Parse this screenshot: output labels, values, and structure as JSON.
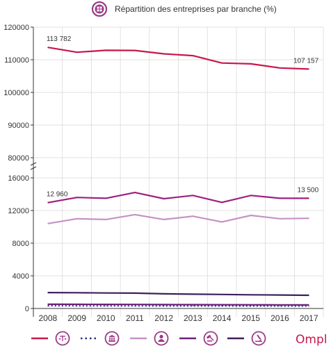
{
  "title": "Répartition des entreprises par branche (%)",
  "brand": "Ompl",
  "colors": {
    "accent": "#c8174b",
    "icon_ring": "#9b3a86",
    "grid": "#d9d9d9",
    "axis": "#333333"
  },
  "chart_data": [
    {
      "type": "line",
      "panel": "top",
      "x": [
        "2008",
        "2009",
        "2010",
        "2011",
        "2012",
        "2013",
        "2014",
        "2015",
        "2016",
        "2017"
      ],
      "ylim": [
        80000,
        120000
      ],
      "yticks": [
        "120000",
        "110000",
        "100000",
        "90000",
        "80000"
      ],
      "grid": true,
      "series": [
        {
          "color": "#c8174b",
          "values": [
            113782,
            112300,
            112900,
            112850,
            111800,
            111250,
            109000,
            108750,
            107500,
            107157
          ]
        }
      ],
      "annotations": [
        "113 782",
        "107 157"
      ]
    },
    {
      "type": "line",
      "panel": "bottom",
      "x": [
        "2008",
        "2009",
        "2010",
        "2011",
        "2012",
        "2013",
        "2014",
        "2015",
        "2016",
        "2017"
      ],
      "ylim": [
        0,
        16000
      ],
      "yticks": [
        "16000",
        "12000",
        "8000",
        "4000",
        "0"
      ],
      "grid": true,
      "series": [
        {
          "color": "#9e1f7f",
          "values": [
            12960,
            13600,
            13500,
            14200,
            13450,
            13850,
            13000,
            13850,
            13500,
            13500
          ]
        },
        {
          "color": "#c592c4",
          "values": [
            10400,
            11000,
            10900,
            11500,
            10900,
            11300,
            10600,
            11400,
            11000,
            11050
          ]
        },
        {
          "color": "#3f1e5a",
          "values": [
            1950,
            1930,
            1900,
            1880,
            1800,
            1750,
            1720,
            1680,
            1650,
            1620
          ]
        },
        {
          "color": "#6a1f78",
          "values": [
            520,
            510,
            500,
            490,
            480,
            470,
            460,
            450,
            440,
            430
          ]
        },
        {
          "color": "#2b2e7d",
          "style": "dotted",
          "values": [
            330,
            320,
            320,
            320,
            310,
            310,
            310,
            300,
            300,
            300
          ]
        }
      ],
      "annotations": [
        "12 960",
        "13 500"
      ]
    }
  ],
  "legend": [
    {
      "icon": "scales-icon",
      "color": "#c8174b",
      "dash": "solid"
    },
    {
      "icon": "bank-icon",
      "color": "#2b2e7d",
      "dash": "dotted"
    },
    {
      "icon": "doctor-icon",
      "color": "#c592c4",
      "dash": "solid"
    },
    {
      "icon": "gavel-icon",
      "color": "#6a1f78",
      "dash": "solid"
    },
    {
      "icon": "microscope-icon",
      "color": "#3f1e5a",
      "dash": "solid"
    }
  ]
}
